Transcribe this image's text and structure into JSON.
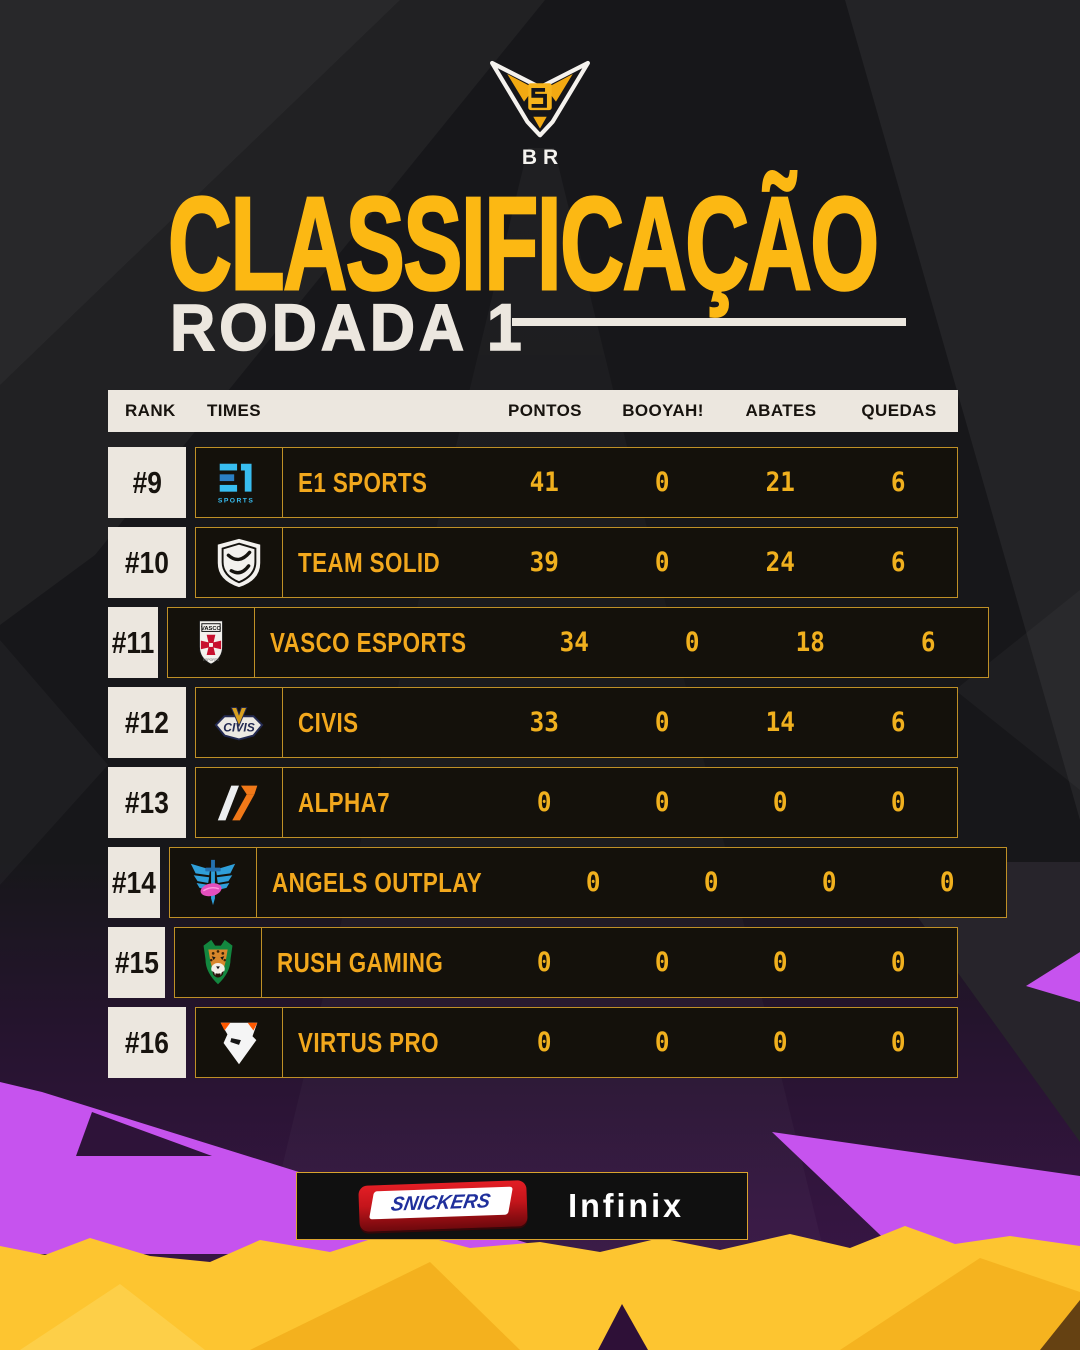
{
  "header": {
    "badge_label": "BR",
    "title": "CLASSIFICAÇÃO",
    "subtitle": "RODADA 1"
  },
  "table": {
    "columns": [
      "RANK",
      "TIMES",
      "PONTOS",
      "BOOYAH!",
      "ABATES",
      "QUEDAS"
    ],
    "rows": [
      {
        "rank": "#9",
        "team": "E1 SPORTS",
        "logo": "e1-sports",
        "pontos": "41",
        "booyah": "0",
        "abates": "21",
        "quedas": "6"
      },
      {
        "rank": "#10",
        "team": "TEAM SOLID",
        "logo": "team-solid",
        "pontos": "39",
        "booyah": "0",
        "abates": "24",
        "quedas": "6"
      },
      {
        "rank": "#11",
        "team": "VASCO ESPORTS",
        "logo": "vasco-esports",
        "pontos": "34",
        "booyah": "0",
        "abates": "18",
        "quedas": "6"
      },
      {
        "rank": "#12",
        "team": "CIVIS",
        "logo": "civis",
        "pontos": "33",
        "booyah": "0",
        "abates": "14",
        "quedas": "6"
      },
      {
        "rank": "#13",
        "team": "ALPHA7",
        "logo": "alpha7",
        "pontos": "0",
        "booyah": "0",
        "abates": "0",
        "quedas": "0"
      },
      {
        "rank": "#14",
        "team": "ANGELS OUTPLAY",
        "logo": "angels-outplay",
        "pontos": "0",
        "booyah": "0",
        "abates": "0",
        "quedas": "0"
      },
      {
        "rank": "#15",
        "team": "RUSH GAMING",
        "logo": "rush-gaming",
        "pontos": "0",
        "booyah": "0",
        "abates": "0",
        "quedas": "0"
      },
      {
        "rank": "#16",
        "team": "VIRTUS PRO",
        "logo": "virtus-pro",
        "pontos": "0",
        "booyah": "0",
        "abates": "0",
        "quedas": "0"
      }
    ]
  },
  "sponsors": {
    "snickers_label": "SNICKERS",
    "infinix_label": "Infinix"
  },
  "colors": {
    "gold": "#fcb813",
    "row-gold": "#f2a81d",
    "num-gold": "#f0b01e",
    "border-gold": "#bf9026",
    "cream": "#ece7df",
    "magenta": "#c653ee",
    "band-yellow": "#fdc530",
    "row-bg": "#14110b",
    "bg": "#17171a",
    "purple-deep": "#3b1749"
  },
  "chart_data": {
    "type": "table",
    "title": "CLASSIFICAÇÃO",
    "subtitle": "RODADA 1",
    "columns": [
      "RANK",
      "TIMES",
      "PONTOS",
      "BOOYAH!",
      "ABATES",
      "QUEDAS"
    ],
    "rows": [
      [
        "#9",
        "E1 SPORTS",
        41,
        0,
        21,
        6
      ],
      [
        "#10",
        "TEAM SOLID",
        39,
        0,
        24,
        6
      ],
      [
        "#11",
        "VASCO ESPORTS",
        34,
        0,
        18,
        6
      ],
      [
        "#12",
        "CIVIS",
        33,
        0,
        14,
        6
      ],
      [
        "#13",
        "ALPHA7",
        0,
        0,
        0,
        0
      ],
      [
        "#14",
        "ANGELS OUTPLAY",
        0,
        0,
        0,
        0
      ],
      [
        "#15",
        "RUSH GAMING",
        0,
        0,
        0,
        0
      ],
      [
        "#16",
        "VIRTUS PRO",
        0,
        0,
        0,
        0
      ]
    ]
  }
}
